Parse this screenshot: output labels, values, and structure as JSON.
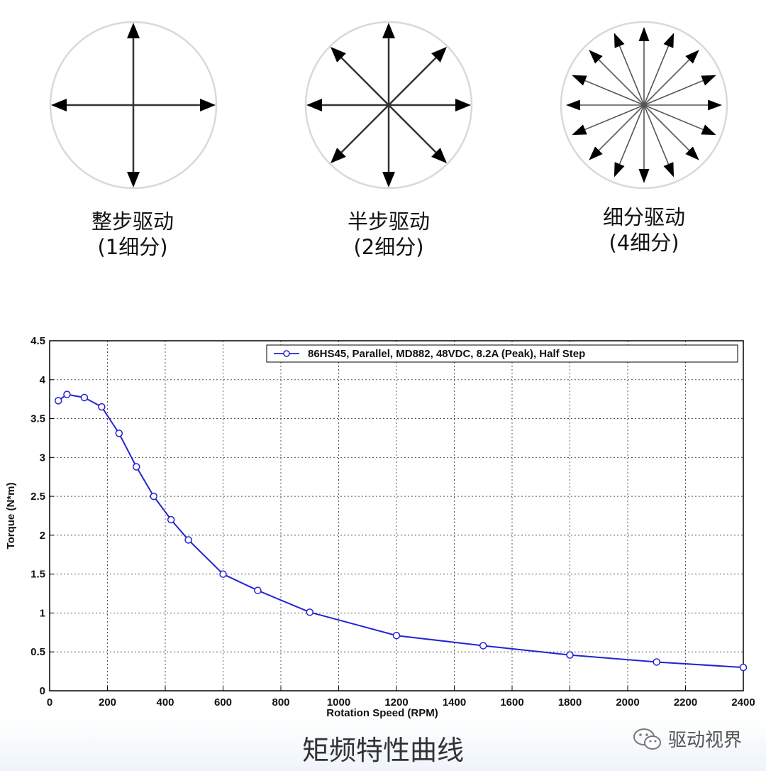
{
  "drive_modes": [
    {
      "name": "整步驱动",
      "subdivision": "(1细分)",
      "directions": 4
    },
    {
      "name": "半步驱动",
      "subdivision": "(2细分)",
      "directions": 8
    },
    {
      "name": "细分驱动",
      "subdivision": "(4细分)",
      "directions": 16
    }
  ],
  "chart_data": {
    "type": "line",
    "xlabel": "Rotation Speed (RPM)",
    "ylabel": "Torque (N*m)",
    "xlim": [
      0,
      2400
    ],
    "ylim": [
      0,
      4.5
    ],
    "x_ticks": [
      0,
      200,
      400,
      600,
      800,
      1000,
      1200,
      1400,
      1600,
      1800,
      2000,
      2200,
      2400
    ],
    "y_ticks": [
      0,
      0.5,
      1,
      1.5,
      2,
      2.5,
      3,
      3.5,
      4,
      4.5
    ],
    "grid": true,
    "legend_position": "top-right",
    "series": [
      {
        "name": "86HS45, Parallel, MD882, 48VDC, 8.2A (Peak), Half Step",
        "color": "#2323d4",
        "marker": "circle",
        "x": [
          30,
          60,
          120,
          180,
          240,
          300,
          360,
          420,
          480,
          600,
          720,
          900,
          1200,
          1500,
          1800,
          2100,
          2400
        ],
        "y": [
          3.73,
          3.81,
          3.77,
          3.65,
          3.31,
          2.88,
          2.5,
          2.2,
          1.94,
          1.5,
          1.29,
          1.01,
          0.71,
          0.58,
          0.46,
          0.37,
          0.3
        ]
      }
    ]
  },
  "figure_caption": "矩频特性曲线",
  "watermark": {
    "icon": "wechat-icon",
    "text": "驱动视界"
  }
}
